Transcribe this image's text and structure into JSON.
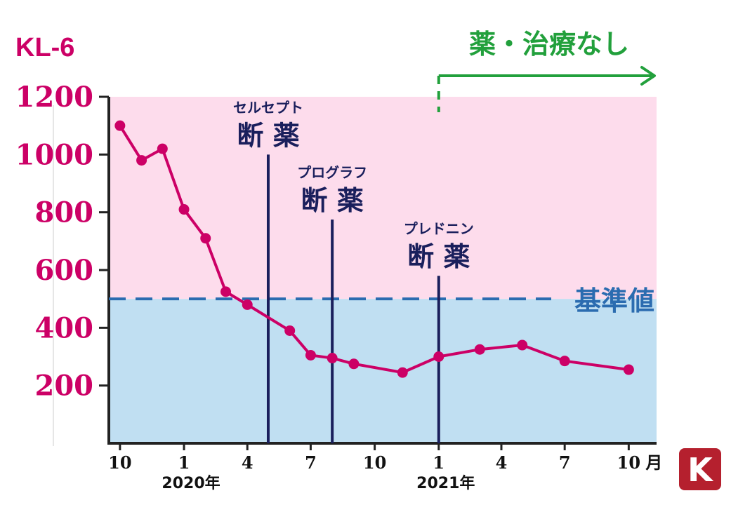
{
  "chart_data": {
    "type": "line",
    "title": "",
    "ylabel": "KL-6",
    "xlabel": "",
    "ylim": [
      0,
      1200
    ],
    "yticks": [
      200,
      400,
      600,
      800,
      1000,
      1200
    ],
    "x_range": [
      "2019-09-15",
      "2021-11-10"
    ],
    "x_tick_labels": [
      {
        "date": "2019-10-01",
        "label": "10"
      },
      {
        "date": "2020-01-01",
        "label": "1"
      },
      {
        "date": "2020-04-01",
        "label": "4"
      },
      {
        "date": "2020-07-01",
        "label": "7"
      },
      {
        "date": "2020-10-01",
        "label": "10"
      },
      {
        "date": "2021-01-01",
        "label": "1"
      },
      {
        "date": "2021-04-01",
        "label": "4"
      },
      {
        "date": "2021-07-01",
        "label": "7"
      },
      {
        "date": "2021-10-01",
        "label": "10"
      }
    ],
    "x_unit": "月",
    "year_labels": [
      {
        "date": "2020-01-01",
        "label": "2020年"
      },
      {
        "date": "2021-01-01",
        "label": "2021年"
      }
    ],
    "series": [
      {
        "name": "",
        "color": "#cc0066",
        "points": [
          {
            "x": "2019-10-01",
            "y": 1100
          },
          {
            "x": "2019-11-01",
            "y": 980
          },
          {
            "x": "2019-12-01",
            "y": 1020
          },
          {
            "x": "2020-01-01",
            "y": 810
          },
          {
            "x": "2020-02-01",
            "y": 710
          },
          {
            "x": "2020-03-01",
            "y": 525
          },
          {
            "x": "2020-04-01",
            "y": 480
          },
          {
            "x": "2020-06-01",
            "y": 390
          },
          {
            "x": "2020-07-01",
            "y": 305
          },
          {
            "x": "2020-08-01",
            "y": 295
          },
          {
            "x": "2020-09-01",
            "y": 275
          },
          {
            "x": "2020-11-10",
            "y": 245
          },
          {
            "x": "2021-01-01",
            "y": 300
          },
          {
            "x": "2021-03-01",
            "y": 325
          },
          {
            "x": "2021-05-01",
            "y": 340
          },
          {
            "x": "2021-07-01",
            "y": 285
          },
          {
            "x": "2021-10-01",
            "y": 255
          }
        ]
      }
    ],
    "reference_line": {
      "y": 500,
      "label": "基準値",
      "color": "#2b6cb0"
    },
    "regions": {
      "above_reference_color": "#fddcec",
      "below_reference_color": "#c0dff2"
    },
    "events": [
      {
        "date": "2020-05-01",
        "y_top": 1000,
        "name": "セルセプト",
        "label": "断 薬",
        "color": "#1a1f5c"
      },
      {
        "date": "2020-08-01",
        "y_top": 775,
        "name": "プログラフ",
        "label": "断 薬",
        "color": "#1a1f5c"
      },
      {
        "date": "2021-01-01",
        "y_top": 580,
        "name": "プレドニン",
        "label": "断 薬",
        "color": "#1a1f5c"
      }
    ],
    "annotation": {
      "text": "薬・治療なし",
      "from_date": "2021-01-01",
      "color": "#22a03c"
    },
    "grid": false
  },
  "logo": {
    "text": "K",
    "background": "#b5202e"
  }
}
